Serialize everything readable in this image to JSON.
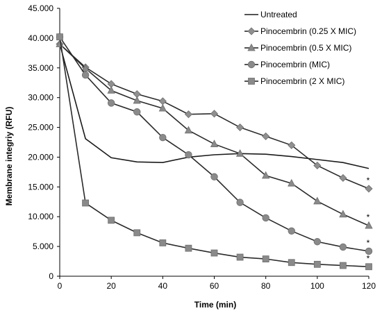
{
  "chart_data": {
    "type": "line",
    "xlabel": "Time (min)",
    "ylabel": "Membrane integriy (RFU)",
    "xlim": [
      0,
      120
    ],
    "ylim": [
      0,
      45000
    ],
    "x_ticks": [
      "0",
      "20",
      "40",
      "60",
      "80",
      "100",
      "120"
    ],
    "y_ticks": [
      "0",
      "5.000",
      "10.000",
      "15.000",
      "20.000",
      "25.000",
      "30.000",
      "35.000",
      "40.000",
      "45.000"
    ],
    "grid": false,
    "legend_position": "top-right",
    "x": [
      0,
      10,
      20,
      30,
      40,
      50,
      60,
      70,
      80,
      90,
      100,
      110,
      120
    ],
    "series": [
      {
        "name": "Untreated",
        "marker": "none",
        "color": "#1a1a1a",
        "values": [
          39000,
          23100,
          19900,
          19200,
          19100,
          20000,
          20400,
          20600,
          20500,
          20100,
          19600,
          19100,
          18100
        ]
      },
      {
        "name": "Pinocembrin (0.25 X MIC)",
        "marker": "diamond",
        "color": "#909090",
        "values": [
          39000,
          35100,
          32300,
          30600,
          29400,
          27200,
          27300,
          25000,
          23500,
          22000,
          18600,
          16500,
          14700
        ]
      },
      {
        "name": "Pinocembrin (0.5 X MIC)",
        "marker": "triangle",
        "color": "#8a8a8a",
        "values": [
          39000,
          34900,
          31200,
          29500,
          28200,
          24500,
          22200,
          20600,
          16900,
          15600,
          12600,
          10400,
          8500
        ]
      },
      {
        "name": "Pinocembrin (MIC)",
        "marker": "circle",
        "color": "#8a8a8a",
        "values": [
          40200,
          33800,
          29100,
          27600,
          23300,
          20400,
          16700,
          12400,
          9800,
          7600,
          5800,
          4900,
          4200
        ]
      },
      {
        "name": "Pinocembrin (2 X MIC)",
        "marker": "square",
        "color": "#8a8a8a",
        "values": [
          40200,
          12300,
          9400,
          7300,
          5600,
          4700,
          3900,
          3200,
          2900,
          2300,
          2000,
          1800,
          1600
        ]
      }
    ],
    "annotations": [
      "*",
      "*",
      "*",
      "*"
    ]
  }
}
